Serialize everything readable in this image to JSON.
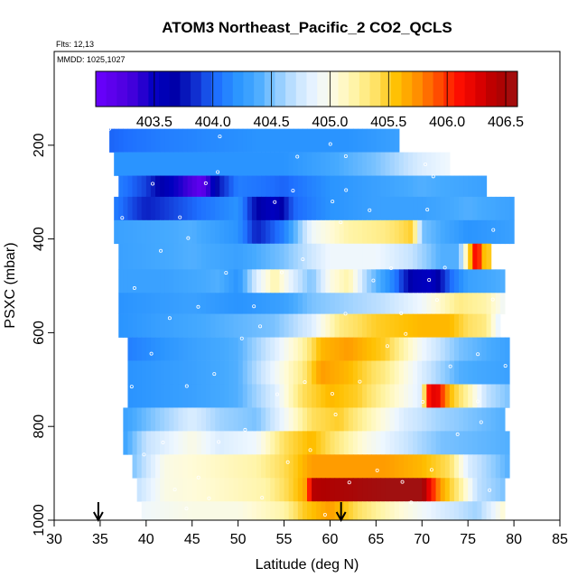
{
  "chart_data": {
    "type": "heatmap",
    "title": "ATOM3 Northeast_Pacific_2 CO2_QCLS",
    "flights": "Flts: 12,13",
    "mmdd": "MMDD: 1025,1027",
    "xlabel": "Latitude (deg N)",
    "ylabel": "PSXC (mbar)",
    "xlim": [
      30,
      85
    ],
    "ylim": [
      1000,
      0
    ],
    "x_ticks": [
      "30",
      "35",
      "40",
      "45",
      "50",
      "55",
      "60",
      "65",
      "70",
      "75",
      "80",
      "85"
    ],
    "y_ticks": [
      "200",
      "400",
      "600",
      "800",
      "1000"
    ],
    "colorbar": {
      "range": [
        403.0,
        406.6
      ],
      "tick_values": [
        403.5,
        404.0,
        404.5,
        405.0,
        405.5,
        406.0,
        406.5
      ],
      "tick_labels": [
        "403.5",
        "404.0",
        "404.5",
        "405.0",
        "405.5",
        "406.0",
        "406.5"
      ]
    },
    "arrows_latitude": [
      34.8,
      61.2
    ],
    "bands": [
      {
        "p_top": 165,
        "p_bot": 215,
        "lat_min": 36,
        "lat_max": 67.5,
        "stops": [
          [
            36,
            404.0
          ],
          [
            42,
            404.1
          ],
          [
            52,
            404.2
          ],
          [
            62,
            404.2
          ],
          [
            67.5,
            404.3
          ]
        ]
      },
      {
        "p_top": 215,
        "p_bot": 265,
        "lat_min": 36.5,
        "lat_max": 73,
        "stops": [
          [
            36.5,
            404.2
          ],
          [
            45,
            404.2
          ],
          [
            55,
            404.2
          ],
          [
            65,
            404.5
          ],
          [
            70,
            404.8
          ],
          [
            73,
            404.9
          ]
        ]
      },
      {
        "p_top": 265,
        "p_bot": 310,
        "lat_min": 37,
        "lat_max": 77,
        "stops": [
          [
            37,
            404.1
          ],
          [
            40,
            403.9
          ],
          [
            42,
            403.6
          ],
          [
            44,
            403.4
          ],
          [
            46,
            403.1
          ],
          [
            48,
            403.8
          ],
          [
            50,
            404.1
          ],
          [
            55,
            404.0
          ],
          [
            60,
            404.2
          ],
          [
            65,
            404.3
          ],
          [
            70,
            404.4
          ],
          [
            77,
            404.3
          ]
        ]
      },
      {
        "p_top": 310,
        "p_bot": 360,
        "lat_min": 36.5,
        "lat_max": 80,
        "stops": [
          [
            36.5,
            404.1
          ],
          [
            40,
            403.8
          ],
          [
            45,
            404.0
          ],
          [
            50,
            404.2
          ],
          [
            52,
            403.7
          ],
          [
            54,
            403.5
          ],
          [
            56,
            404.0
          ],
          [
            60,
            404.2
          ],
          [
            65,
            404.3
          ],
          [
            70,
            404.3
          ],
          [
            75,
            404.4
          ],
          [
            80,
            404.3
          ]
        ]
      },
      {
        "p_top": 360,
        "p_bot": 410,
        "lat_min": 36.5,
        "lat_max": 80,
        "stops": [
          [
            36.5,
            404.3
          ],
          [
            45,
            404.4
          ],
          [
            50,
            404.2
          ],
          [
            52,
            403.8
          ],
          [
            55,
            404.1
          ],
          [
            58,
            404.9
          ],
          [
            62,
            405.2
          ],
          [
            66,
            405.3
          ],
          [
            69,
            405.5
          ],
          [
            70,
            404.5
          ],
          [
            75,
            404.2
          ],
          [
            80,
            404.3
          ]
        ]
      },
      {
        "p_top": 410,
        "p_bot": 465,
        "lat_min": 37,
        "lat_max": 77.5,
        "stops": [
          [
            37,
            404.3
          ],
          [
            45,
            404.4
          ],
          [
            50,
            404.3
          ],
          [
            55,
            404.5
          ],
          [
            60,
            404.9
          ],
          [
            65,
            404.9
          ],
          [
            69,
            404.7
          ],
          [
            72,
            404.4
          ],
          [
            74,
            404.4
          ],
          [
            75.5,
            405.8
          ],
          [
            76,
            406.4
          ],
          [
            76.5,
            405.6
          ],
          [
            77.5,
            405.5
          ]
        ]
      },
      {
        "p_top": 465,
        "p_bot": 515,
        "lat_min": 37,
        "lat_max": 79,
        "stops": [
          [
            37,
            404.3
          ],
          [
            42,
            404.3
          ],
          [
            48,
            404.4
          ],
          [
            50,
            404.2
          ],
          [
            52,
            404.8
          ],
          [
            54,
            405.2
          ],
          [
            56,
            404.8
          ],
          [
            58,
            404.5
          ],
          [
            60,
            405.0
          ],
          [
            62,
            405.2
          ],
          [
            64,
            404.6
          ],
          [
            67,
            404.1
          ],
          [
            69,
            403.6
          ],
          [
            71,
            403.5
          ],
          [
            73,
            404.0
          ],
          [
            75,
            404.3
          ],
          [
            79,
            404.4
          ]
        ]
      },
      {
        "p_top": 515,
        "p_bot": 560,
        "lat_min": 37,
        "lat_max": 79,
        "stops": [
          [
            37,
            404.2
          ],
          [
            45,
            404.3
          ],
          [
            50,
            404.2
          ],
          [
            55,
            404.3
          ],
          [
            58,
            404.5
          ],
          [
            62,
            404.6
          ],
          [
            66,
            404.7
          ],
          [
            70,
            404.9
          ],
          [
            74,
            405.3
          ],
          [
            77,
            405.2
          ],
          [
            79,
            404.9
          ]
        ]
      },
      {
        "p_top": 560,
        "p_bot": 610,
        "lat_min": 37,
        "lat_max": 78.5,
        "stops": [
          [
            37,
            404.2
          ],
          [
            42,
            404.3
          ],
          [
            48,
            404.4
          ],
          [
            54,
            404.5
          ],
          [
            58,
            404.8
          ],
          [
            61,
            405.3
          ],
          [
            65,
            405.5
          ],
          [
            70,
            405.6
          ],
          [
            73,
            405.6
          ],
          [
            75,
            405.4
          ],
          [
            77,
            405.3
          ],
          [
            78.5,
            404.8
          ]
        ]
      },
      {
        "p_top": 610,
        "p_bot": 660,
        "lat_min": 38,
        "lat_max": 79.5,
        "stops": [
          [
            38,
            404.1
          ],
          [
            45,
            404.3
          ],
          [
            50,
            404.4
          ],
          [
            54,
            404.8
          ],
          [
            57,
            405.2
          ],
          [
            59,
            405.6
          ],
          [
            62,
            405.7
          ],
          [
            66,
            405.5
          ],
          [
            70,
            404.9
          ],
          [
            74,
            404.5
          ],
          [
            79.5,
            404.3
          ]
        ]
      },
      {
        "p_top": 660,
        "p_bot": 710,
        "lat_min": 38,
        "lat_max": 79.5,
        "stops": [
          [
            38,
            404.2
          ],
          [
            45,
            404.3
          ],
          [
            50,
            404.4
          ],
          [
            54,
            404.9
          ],
          [
            57,
            405.3
          ],
          [
            59,
            405.7
          ],
          [
            62,
            405.6
          ],
          [
            66,
            405.3
          ],
          [
            70,
            404.8
          ],
          [
            74,
            404.4
          ],
          [
            79.5,
            404.3
          ]
        ]
      },
      {
        "p_top": 710,
        "p_bot": 760,
        "lat_min": 38,
        "lat_max": 79.5,
        "stops": [
          [
            38,
            404.2
          ],
          [
            45,
            404.3
          ],
          [
            50,
            404.4
          ],
          [
            54,
            404.8
          ],
          [
            57,
            405.4
          ],
          [
            60,
            405.6
          ],
          [
            63,
            405.5
          ],
          [
            67,
            405.1
          ],
          [
            70,
            404.8
          ],
          [
            70.5,
            406.0
          ],
          [
            71.5,
            406.3
          ],
          [
            73,
            405.6
          ],
          [
            75,
            405.2
          ],
          [
            77,
            404.7
          ],
          [
            79.5,
            404.5
          ]
        ]
      },
      {
        "p_top": 760,
        "p_bot": 810,
        "lat_min": 37.5,
        "lat_max": 79,
        "stops": [
          [
            37.5,
            404.3
          ],
          [
            42,
            404.6
          ],
          [
            45,
            404.8
          ],
          [
            48,
            404.6
          ],
          [
            52,
            404.5
          ],
          [
            55,
            404.9
          ],
          [
            58,
            405.4
          ],
          [
            61,
            405.5
          ],
          [
            64,
            405.2
          ],
          [
            68,
            404.8
          ],
          [
            72,
            404.6
          ],
          [
            79,
            404.4
          ]
        ]
      },
      {
        "p_top": 810,
        "p_bot": 860,
        "lat_min": 37.5,
        "lat_max": 79.5,
        "stops": [
          [
            37.5,
            404.3
          ],
          [
            40,
            404.7
          ],
          [
            45,
            405.0
          ],
          [
            48,
            404.8
          ],
          [
            52,
            404.9
          ],
          [
            55,
            405.4
          ],
          [
            58,
            405.6
          ],
          [
            61,
            405.3
          ],
          [
            64,
            405.0
          ],
          [
            67,
            404.8
          ],
          [
            72,
            404.5
          ],
          [
            79.5,
            404.4
          ]
        ]
      },
      {
        "p_top": 860,
        "p_bot": 910,
        "lat_min": 38.5,
        "lat_max": 79.5,
        "stops": [
          [
            38.5,
            404.5
          ],
          [
            42,
            405.0
          ],
          [
            47,
            405.1
          ],
          [
            52,
            405.2
          ],
          [
            56,
            405.5
          ],
          [
            58,
            405.7
          ],
          [
            61,
            405.7
          ],
          [
            66,
            405.7
          ],
          [
            70,
            405.6
          ],
          [
            73,
            405.4
          ],
          [
            75,
            404.8
          ],
          [
            79.5,
            404.4
          ]
        ]
      },
      {
        "p_top": 910,
        "p_bot": 960,
        "lat_min": 39,
        "lat_max": 79,
        "stops": [
          [
            39,
            404.7
          ],
          [
            42,
            405.0
          ],
          [
            48,
            405.1
          ],
          [
            53,
            405.2
          ],
          [
            56,
            405.5
          ],
          [
            57.5,
            405.7
          ],
          [
            58,
            406.4
          ],
          [
            62,
            406.5
          ],
          [
            66,
            406.6
          ],
          [
            70,
            406.6
          ],
          [
            71,
            406.1
          ],
          [
            72,
            405.7
          ],
          [
            74,
            405.3
          ],
          [
            76,
            404.7
          ],
          [
            79,
            404.5
          ]
        ]
      },
      {
        "p_top": 960,
        "p_bot": 1000,
        "lat_min": 39.5,
        "lat_max": 79,
        "stops": [
          [
            39.5,
            404.9
          ],
          [
            45,
            405.0
          ],
          [
            50,
            405.0
          ],
          [
            55,
            405.2
          ],
          [
            57,
            405.5
          ],
          [
            60,
            405.7
          ],
          [
            63,
            405.4
          ],
          [
            67,
            405.1
          ],
          [
            72,
            404.8
          ],
          [
            76,
            404.6
          ],
          [
            78,
            404.9
          ],
          [
            79,
            405.1
          ]
        ]
      }
    ]
  },
  "palette": [
    "#6a00ff",
    "#5a00e8",
    "#3c00d8",
    "#0000c0",
    "#0000a8",
    "#1030d0",
    "#1e6fff",
    "#2a94ff",
    "#46aaff",
    "#8ccaff",
    "#c8e4ff",
    "#eef7ff",
    "#fffbd8",
    "#fff3a0",
    "#ffe060",
    "#ffc000",
    "#ff9000",
    "#ff5000",
    "#ff1000",
    "#e00000",
    "#b00000",
    "#a01010"
  ]
}
